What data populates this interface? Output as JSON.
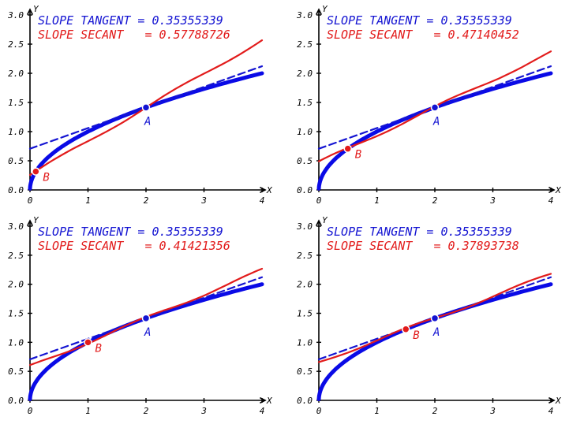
{
  "colors": {
    "function": "#0a0ae6",
    "tangent": "#1414d2",
    "secant": "#e21b1b",
    "axis": "#000000"
  },
  "chart_data": [
    {
      "type": "line",
      "xlabel": "X",
      "ylabel": "Y",
      "xlim": [
        0,
        4
      ],
      "ylim": [
        0,
        3
      ],
      "xticks": [
        "0",
        "1",
        "2",
        "3",
        "4"
      ],
      "yticks": [
        "0.0",
        "0.5",
        "1.0",
        "1.5",
        "2.0",
        "2.5",
        "3.0"
      ],
      "annotation_tangent": "SLOPE TANGENT = 0.35355339",
      "annotation_secant": "SLOPE SECANT   = 0.57788726",
      "point_a": {
        "label": "A",
        "x": 2.0,
        "y": 1.414
      },
      "point_b": {
        "label": "B",
        "x": 0.1,
        "y": 0.316
      },
      "slope_tangent": 0.35355339,
      "slope_secant": 0.57788726
    },
    {
      "type": "line",
      "xlabel": "X",
      "ylabel": "Y",
      "xlim": [
        0,
        4
      ],
      "ylim": [
        0,
        3
      ],
      "xticks": [
        "0",
        "1",
        "2",
        "3",
        "4"
      ],
      "yticks": [
        "0.0",
        "0.5",
        "1.0",
        "1.5",
        "2.0",
        "2.5",
        "3.0"
      ],
      "annotation_tangent": "SLOPE TANGENT = 0.35355339",
      "annotation_secant": "SLOPE SECANT   = 0.47140452",
      "point_a": {
        "label": "A",
        "x": 2.0,
        "y": 1.414
      },
      "point_b": {
        "label": "B",
        "x": 0.5,
        "y": 0.707
      },
      "slope_tangent": 0.35355339,
      "slope_secant": 0.47140452
    },
    {
      "type": "line",
      "xlabel": "X",
      "ylabel": "Y",
      "xlim": [
        0,
        4
      ],
      "ylim": [
        0,
        3
      ],
      "xticks": [
        "0",
        "1",
        "2",
        "3",
        "4"
      ],
      "yticks": [
        "0.0",
        "0.5",
        "1.0",
        "1.5",
        "2.0",
        "2.5",
        "3.0"
      ],
      "annotation_tangent": "SLOPE TANGENT = 0.35355339",
      "annotation_secant": "SLOPE SECANT   = 0.41421356",
      "point_a": {
        "label": "A",
        "x": 2.0,
        "y": 1.414
      },
      "point_b": {
        "label": "B",
        "x": 1.0,
        "y": 1.0
      },
      "slope_tangent": 0.35355339,
      "slope_secant": 0.41421356
    },
    {
      "type": "line",
      "xlabel": "X",
      "ylabel": "Y",
      "xlim": [
        0,
        4
      ],
      "ylim": [
        0,
        3
      ],
      "xticks": [
        "0",
        "1",
        "2",
        "3",
        "4"
      ],
      "yticks": [
        "0.0",
        "0.5",
        "1.0",
        "1.5",
        "2.0",
        "2.5",
        "3.0"
      ],
      "annotation_tangent": "SLOPE TANGENT = 0.35355339",
      "annotation_secant": "SLOPE SECANT   = 0.37893738",
      "point_a": {
        "label": "A",
        "x": 2.0,
        "y": 1.414
      },
      "point_b": {
        "label": "B",
        "x": 1.5,
        "y": 1.225
      },
      "slope_tangent": 0.35355339,
      "slope_secant": 0.37893738
    }
  ]
}
